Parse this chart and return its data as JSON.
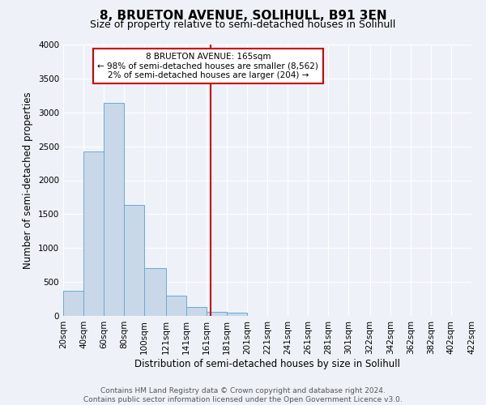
{
  "title": "8, BRUETON AVENUE, SOLIHULL, B91 3EN",
  "subtitle": "Size of property relative to semi-detached houses in Solihull",
  "xlabel": "Distribution of semi-detached houses by size in Solihull",
  "ylabel": "Number of semi-detached properties",
  "bar_color": "#c8d8e8",
  "bar_edge_color": "#6aaad4",
  "background_color": "#eef2f8",
  "grid_color": "#ffffff",
  "vline_x": 165,
  "vline_color": "#cc0000",
  "annotation_title": "8 BRUETON AVENUE: 165sqm",
  "annotation_line1": "← 98% of semi-detached houses are smaller (8,562)",
  "annotation_line2": "2% of semi-detached houses are larger (204) →",
  "annotation_box_color": "#cc0000",
  "footer_line1": "Contains HM Land Registry data © Crown copyright and database right 2024.",
  "footer_line2": "Contains public sector information licensed under the Open Government Licence v3.0.",
  "bin_edges": [
    20,
    40,
    60,
    80,
    100,
    121,
    141,
    161,
    181,
    201,
    221,
    241,
    261,
    281,
    301,
    322,
    342,
    362,
    382,
    402,
    422
  ],
  "bin_heights": [
    375,
    2420,
    3140,
    1640,
    700,
    295,
    130,
    55,
    50,
    0,
    0,
    0,
    0,
    0,
    0,
    0,
    0,
    0,
    0,
    0
  ],
  "tick_labels": [
    "20sqm",
    "40sqm",
    "60sqm",
    "80sqm",
    "100sqm",
    "121sqm",
    "141sqm",
    "161sqm",
    "181sqm",
    "201sqm",
    "221sqm",
    "241sqm",
    "261sqm",
    "281sqm",
    "301sqm",
    "322sqm",
    "342sqm",
    "362sqm",
    "382sqm",
    "402sqm",
    "422sqm"
  ],
  "ylim": [
    0,
    4000
  ],
  "yticks": [
    0,
    500,
    1000,
    1500,
    2000,
    2500,
    3000,
    3500,
    4000
  ],
  "title_fontsize": 11,
  "subtitle_fontsize": 9,
  "axis_label_fontsize": 8.5,
  "tick_fontsize": 7.5,
  "footer_fontsize": 6.5,
  "ann_fontsize": 7.5
}
